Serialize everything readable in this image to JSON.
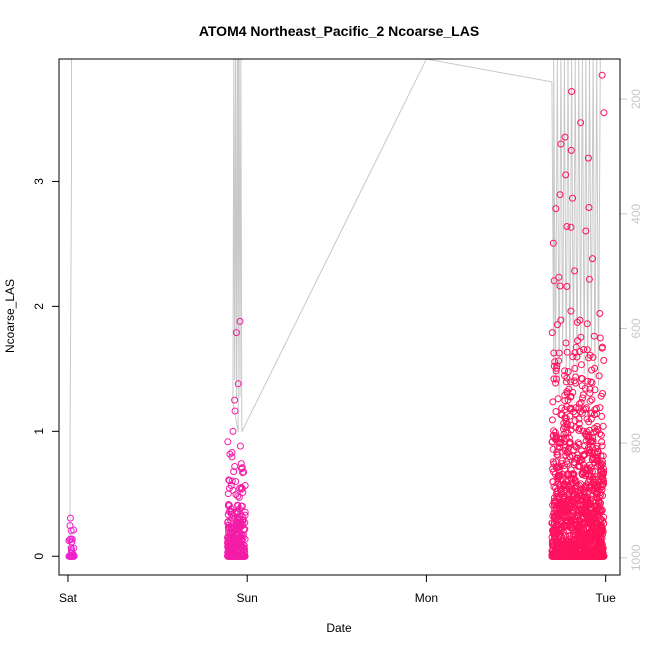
{
  "chart_data": {
    "type": "scatter",
    "title": "ATOM4 Northeast_Pacific_2 Ncoarse_LAS",
    "xlabel": "Date",
    "ylabel": "Ncoarse_LAS",
    "x_ticks": [
      {
        "label": "Sat",
        "day": 0
      },
      {
        "label": "Sun",
        "day": 1
      },
      {
        "label": "Mon",
        "day": 2
      },
      {
        "label": "Tue",
        "day": 3
      }
    ],
    "xlim_days": [
      -0.05,
      3.08
    ],
    "ylim": [
      -0.15,
      3.98
    ],
    "y_ticks": [
      0,
      1,
      2,
      3
    ],
    "right_axis": {
      "quantity": "pressure",
      "ticks": [
        200,
        400,
        600,
        800,
        1000
      ],
      "range": [
        130,
        1030
      ],
      "inverted": true,
      "color": "#c8c8c8"
    },
    "point_color_start": "#ee22cc",
    "point_color_end": "#ff1155",
    "line_color": "#c8c8c8",
    "series": [
      {
        "kind": "altitude-trace",
        "x": [
          0.01,
          0.012,
          0.012,
          0.02,
          0.02,
          0.95,
          0.95,
          0.92,
          0.925,
          0.93,
          0.935,
          0.94,
          0.945,
          0.95,
          0.955,
          0.96,
          0.965,
          0.97,
          2.0,
          2.7,
          2.71,
          2.71,
          2.72,
          2.73,
          2.74,
          2.75,
          2.76,
          2.77,
          2.78,
          2.79,
          2.8,
          2.81,
          2.82,
          2.83,
          2.84,
          2.85,
          2.86,
          2.87,
          2.88,
          2.89,
          2.9,
          2.91,
          2.92,
          2.93,
          2.94,
          2.95,
          2.96,
          2.97
        ],
        "y": [
          1000,
          900,
          780,
          320,
          130,
          130,
          780,
          730,
          130,
          690,
          130,
          720,
          130,
          680,
          130,
          720,
          130,
          780,
          130,
          170,
          680,
          130,
          700,
          130,
          720,
          130,
          660,
          130,
          690,
          130,
          720,
          130,
          680,
          130,
          700,
          130,
          650,
          130,
          680,
          130,
          700,
          130,
          640,
          130,
          690,
          130,
          700,
          130
        ]
      }
    ],
    "scatter_bursts": [
      {
        "name": "burst1",
        "x_start": 0.005,
        "x_end": 0.035,
        "count": 40,
        "zero_frac": 0.55,
        "max": 0.62,
        "decay": 0.12,
        "outliers": []
      },
      {
        "name": "burst2",
        "x_start": 0.89,
        "x_end": 0.99,
        "count": 320,
        "zero_frac": 0.25,
        "max": 1.2,
        "decay": 0.22,
        "outliers": [
          [
            0.94,
            1.79
          ],
          [
            0.96,
            1.88
          ],
          [
            0.93,
            1.25
          ],
          [
            0.95,
            1.38
          ]
        ]
      },
      {
        "name": "burst3",
        "x_start": 2.7,
        "x_end": 2.99,
        "count": 1600,
        "zero_frac": 0.28,
        "max": 3.6,
        "decay": 0.5,
        "outliers": [
          [
            2.75,
            3.3
          ],
          [
            2.81,
            3.72
          ],
          [
            2.86,
            3.47
          ],
          [
            2.98,
            3.85
          ],
          [
            2.99,
            3.55
          ]
        ]
      }
    ]
  }
}
